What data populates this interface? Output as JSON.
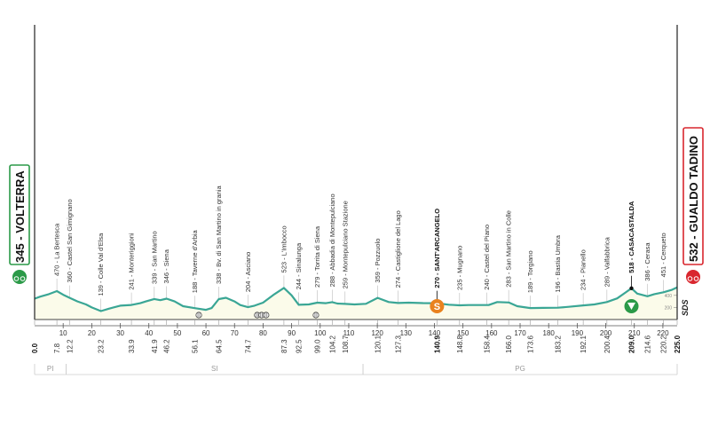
{
  "chart_data": {
    "type": "area",
    "title": "",
    "xlabel": "",
    "ylabel": "",
    "x_unit": "km",
    "y_unit": "m",
    "xlim": [
      0,
      225
    ],
    "ylim": [
      0,
      1000
    ],
    "y_ticks": [
      200,
      400
    ],
    "profile_color": "#3aa695",
    "fill_color": "#fbfbea",
    "start": {
      "km": 0,
      "elevation": 345,
      "name": "VOLTERRA",
      "label": "345 - VOLTERRA",
      "color": "#2b9a48"
    },
    "finish": {
      "km": 225,
      "elevation": 532,
      "name": "GUALDO TADINO",
      "label": "532 - GUALDO TADINO",
      "color": "#d9262e"
    },
    "profile": [
      [
        0,
        345
      ],
      [
        2,
        380
      ],
      [
        5,
        420
      ],
      [
        7.8,
        470
      ],
      [
        10,
        410
      ],
      [
        12.2,
        360
      ],
      [
        15,
        300
      ],
      [
        18,
        250
      ],
      [
        20,
        200
      ],
      [
        23.2,
        139
      ],
      [
        26,
        180
      ],
      [
        30,
        230
      ],
      [
        33.9,
        241
      ],
      [
        37,
        270
      ],
      [
        39,
        300
      ],
      [
        41.9,
        339
      ],
      [
        44,
        320
      ],
      [
        46.2,
        346
      ],
      [
        49,
        300
      ],
      [
        52,
        220
      ],
      [
        56.1,
        188
      ],
      [
        60,
        160
      ],
      [
        62,
        190
      ],
      [
        64.5,
        338
      ],
      [
        67,
        360
      ],
      [
        70,
        300
      ],
      [
        72,
        240
      ],
      [
        74.7,
        204
      ],
      [
        77,
        230
      ],
      [
        80,
        280
      ],
      [
        84,
        420
      ],
      [
        87.3,
        523
      ],
      [
        90,
        400
      ],
      [
        92.5,
        244
      ],
      [
        96,
        250
      ],
      [
        99,
        279
      ],
      [
        102,
        270
      ],
      [
        104.2,
        288
      ],
      [
        106,
        265
      ],
      [
        108.7,
        259
      ],
      [
        112,
        250
      ],
      [
        116,
        260
      ],
      [
        120.1,
        359
      ],
      [
        124,
        290
      ],
      [
        127.3,
        274
      ],
      [
        131,
        280
      ],
      [
        136,
        272
      ],
      [
        140.9,
        270
      ],
      [
        145,
        245
      ],
      [
        148.8,
        235
      ],
      [
        152,
        240
      ],
      [
        156.4,
        240
      ],
      [
        159,
        240
      ],
      [
        162,
        290
      ],
      [
        166,
        283
      ],
      [
        169,
        220
      ],
      [
        173.6,
        189
      ],
      [
        178,
        192
      ],
      [
        183.2,
        196
      ],
      [
        187,
        210
      ],
      [
        192.1,
        234
      ],
      [
        196,
        250
      ],
      [
        200.4,
        289
      ],
      [
        204,
        350
      ],
      [
        207,
        450
      ],
      [
        209,
        518
      ],
      [
        211,
        430
      ],
      [
        214.6,
        386
      ],
      [
        217,
        420
      ],
      [
        220.2,
        451
      ],
      [
        223,
        490
      ],
      [
        225,
        532
      ]
    ],
    "km_markers": [
      {
        "km": 0,
        "label": "0.0",
        "major": true
      },
      {
        "km": 7.8,
        "label": "7.8"
      },
      {
        "km": 12.2,
        "label": "12.2"
      },
      {
        "km": 23.2,
        "label": "23.2"
      },
      {
        "km": 33.9,
        "label": "33.9"
      },
      {
        "km": 41.9,
        "label": "41.9"
      },
      {
        "km": 46.2,
        "label": "46.2"
      },
      {
        "km": 56.1,
        "label": "56.1"
      },
      {
        "km": 64.5,
        "label": "64.5"
      },
      {
        "km": 74.7,
        "label": "74.7"
      },
      {
        "km": 87.3,
        "label": "87.3"
      },
      {
        "km": 92.5,
        "label": "92.5"
      },
      {
        "km": 99.0,
        "label": "99.0"
      },
      {
        "km": 104.2,
        "label": "104.2"
      },
      {
        "km": 108.7,
        "label": "108.7"
      },
      {
        "km": 120.1,
        "label": "120.1"
      },
      {
        "km": 127.3,
        "label": "127.3"
      },
      {
        "km": 140.9,
        "label": "140.9",
        "major": true
      },
      {
        "km": 148.8,
        "label": "148.8"
      },
      {
        "km": 158.4,
        "label": "158.4"
      },
      {
        "km": 166.0,
        "label": "166.0"
      },
      {
        "km": 173.6,
        "label": "173.6"
      },
      {
        "km": 183.2,
        "label": "183.2"
      },
      {
        "km": 192.1,
        "label": "192.1"
      },
      {
        "km": 200.4,
        "label": "200.4"
      },
      {
        "km": 209.0,
        "label": "209.0",
        "major": true
      },
      {
        "km": 214.6,
        "label": "214.6"
      },
      {
        "km": 220.2,
        "label": "220.2"
      },
      {
        "km": 225.0,
        "label": "225.0",
        "major": true
      }
    ],
    "x_scale_ticks": [
      10,
      20,
      30,
      40,
      50,
      60,
      70,
      80,
      90,
      100,
      110,
      120,
      130,
      140,
      150,
      160,
      170,
      180,
      190,
      200,
      210,
      220
    ],
    "waypoints": [
      {
        "km": 7.8,
        "label": "470 - La Bertesca"
      },
      {
        "km": 12.2,
        "label": "360 - Castel San Gimignano"
      },
      {
        "km": 23.2,
        "label": "139 - Colle Val d'Elsa"
      },
      {
        "km": 33.9,
        "label": "241 - Monteriggioni"
      },
      {
        "km": 41.9,
        "label": "339 - San Martino"
      },
      {
        "km": 46.2,
        "label": "346 - Siena"
      },
      {
        "km": 56.1,
        "label": "188 - Taverne d'Arbia"
      },
      {
        "km": 64.5,
        "label": "338 - Bv. di San Martino in grania"
      },
      {
        "km": 74.7,
        "label": "204 - Asciano"
      },
      {
        "km": 87.3,
        "label": "523 - L'Imbocco"
      },
      {
        "km": 92.5,
        "label": "244 - Sinalunga"
      },
      {
        "km": 99.0,
        "label": "279 - Torrita di Siena"
      },
      {
        "km": 104.2,
        "label": "288 - Abbadia di Montepulciano"
      },
      {
        "km": 108.7,
        "label": "259 - Montepulciano Stazione"
      },
      {
        "km": 120.1,
        "label": "359 - Pozzuolo"
      },
      {
        "km": 127.3,
        "label": "274 - Castiglione del Lago"
      },
      {
        "km": 140.9,
        "label": "270 - SANT'ARCANGELO",
        "key": true
      },
      {
        "km": 148.8,
        "label": "235 - Mugnano"
      },
      {
        "km": 158.4,
        "label": "240 - Castel del Piano"
      },
      {
        "km": 166.0,
        "label": "283 - San Martino in Colle"
      },
      {
        "km": 173.6,
        "label": "189 - Torgiano"
      },
      {
        "km": 183.2,
        "label": "196 - Bastia Umbra"
      },
      {
        "km": 192.1,
        "label": "234 - Pianello"
      },
      {
        "km": 200.4,
        "label": "289 - Valfabbrica"
      },
      {
        "km": 209.0,
        "label": "518 - CASACASTALDA",
        "key": true
      },
      {
        "km": 214.6,
        "label": "386 - Cerasa"
      },
      {
        "km": 220.2,
        "label": "451 - Cerqueto"
      }
    ],
    "sprint": {
      "km": 140.9,
      "label": "S",
      "color": "#e9821e"
    },
    "kom": {
      "km": 209.0,
      "color": "#2b9a48"
    },
    "gravel_sectors": [
      {
        "km": 57.5,
        "count": 1
      },
      {
        "km": 79.5,
        "count": 3
      },
      {
        "km": 98.5,
        "count": 1
      }
    ],
    "provinces": [
      {
        "label": "PI",
        "from": 0,
        "to": 11
      },
      {
        "label": "SI",
        "from": 11,
        "to": 115
      },
      {
        "label": "PG",
        "from": 115,
        "to": 225
      }
    ],
    "logo": "SDS"
  }
}
